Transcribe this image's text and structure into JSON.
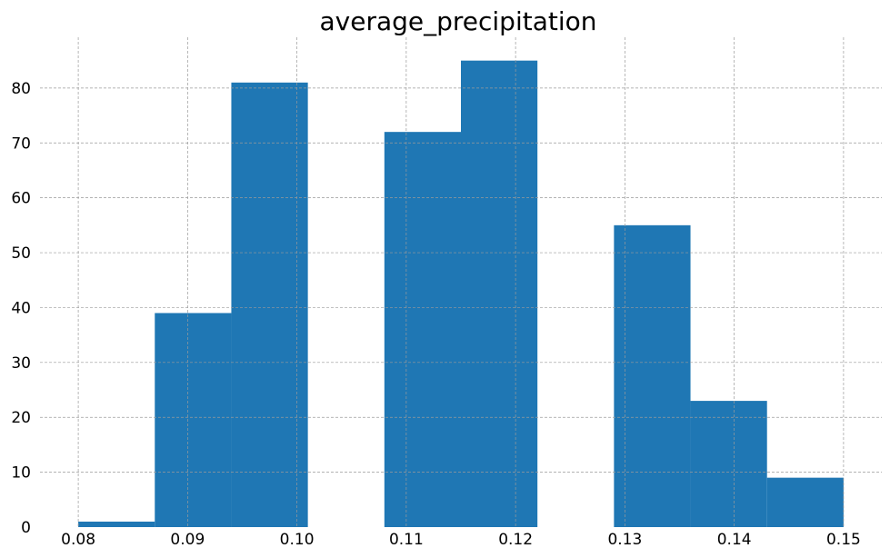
{
  "chart_data": {
    "type": "bar",
    "title": "average_precipitation",
    "xlabel": "",
    "ylabel": "",
    "bins": [
      {
        "x0": 0.08,
        "x1": 0.087,
        "count": 1
      },
      {
        "x0": 0.087,
        "x1": 0.094,
        "count": 39
      },
      {
        "x0": 0.094,
        "x1": 0.101,
        "count": 81
      },
      {
        "x0": 0.101,
        "x1": 0.108,
        "count": 0
      },
      {
        "x0": 0.108,
        "x1": 0.115,
        "count": 72
      },
      {
        "x0": 0.115,
        "x1": 0.122,
        "count": 85
      },
      {
        "x0": 0.122,
        "x1": 0.129,
        "count": 0
      },
      {
        "x0": 0.129,
        "x1": 0.136,
        "count": 55
      },
      {
        "x0": 0.136,
        "x1": 0.143,
        "count": 23
      },
      {
        "x0": 0.143,
        "x1": 0.15,
        "count": 9
      }
    ],
    "xticks": [
      "0.08",
      "0.09",
      "0.10",
      "0.11",
      "0.12",
      "0.13",
      "0.14",
      "0.15"
    ],
    "xtick_values": [
      0.08,
      0.09,
      0.1,
      0.11,
      0.12,
      0.13,
      0.14,
      0.15
    ],
    "yticks": [
      "0",
      "10",
      "20",
      "30",
      "40",
      "50",
      "60",
      "70",
      "80"
    ],
    "ytick_values": [
      0,
      10,
      20,
      30,
      40,
      50,
      60,
      70,
      80
    ],
    "xlim": [
      0.0765,
      0.1535
    ],
    "ylim": [
      0,
      89.25
    ],
    "grid": true,
    "legend": "none",
    "bar_color": "#1f77b4"
  }
}
